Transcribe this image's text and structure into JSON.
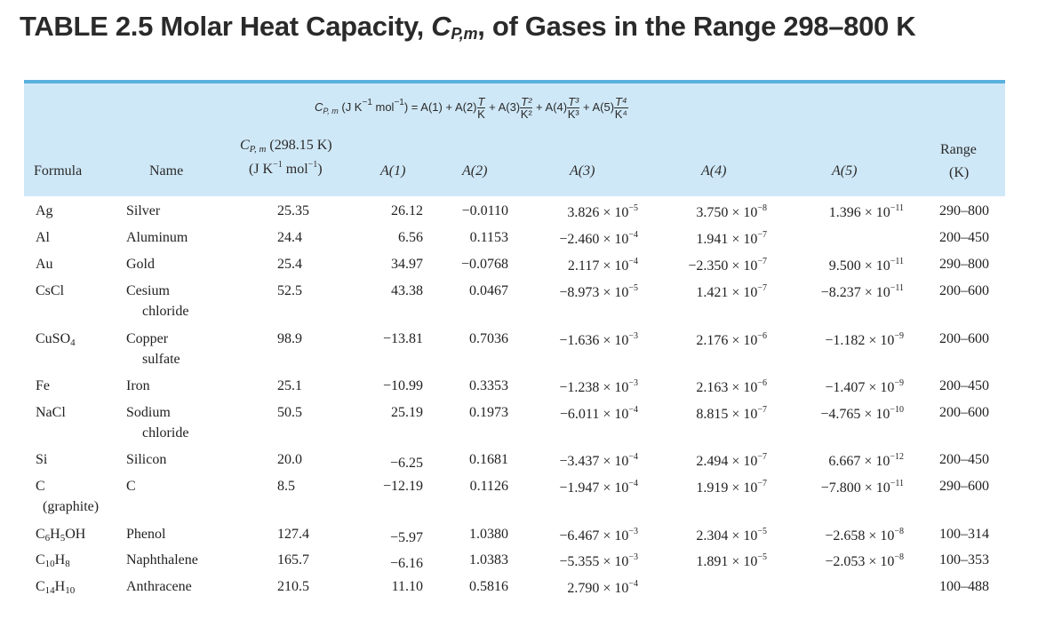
{
  "title": {
    "prefix": "TABLE 2.5 Molar Heat Capacity, ",
    "symbol": "C",
    "subscript": "P,m",
    "suffix": ", of Gases in the Range 298–800 K"
  },
  "equation": {
    "lhs": "C",
    "lhs_sub": "P, m",
    "lhs_units": "(J K",
    "lhs_units_sup": "−1",
    "lhs_units_mid": " mol",
    "lhs_units_sup2": "−1",
    "lhs_units_end": ") = A(1) + A(2)",
    "t_num": "T",
    "t_den": "K",
    "a3": "+ A(3)",
    "t2_num": "T²",
    "t2_den": "K²",
    "a4": "+ A(4)",
    "t3_num": "T³",
    "t3_den": "K³",
    "a5": "+ A(5)",
    "t4_num": "T⁴",
    "t4_den": "K⁴"
  },
  "headers": {
    "formula": "Formula",
    "name": "Name",
    "cp_line1_sym": "C",
    "cp_line1_sub": "P, m",
    "cp_line1_rest": " (298.15 K)",
    "cp_line2": "(J K",
    "cp_line2_sup": "−1",
    "cp_line2_mid": " mol",
    "cp_line2_sup2": "−1",
    "cp_line2_end": ")",
    "a1": "A(1)",
    "a2": "A(2)",
    "a3": "A(3)",
    "a4": "A(4)",
    "a5": "A(5)",
    "range_line1": "Range",
    "range_line2": "(K)"
  },
  "rows": [
    {
      "formula": "Ag",
      "name": "Silver",
      "name2": "",
      "cp": "25.35",
      "a1": "26.12",
      "a2": "−0.0110",
      "a3": "3.826 × 10",
      "a3e": "−5",
      "a4": "3.750 × 10",
      "a4e": "−8",
      "a5": "1.396 × 10",
      "a5e": "−11",
      "range": "290–800"
    },
    {
      "formula": "Al",
      "name": "Aluminum",
      "name2": "",
      "cp": "24.4",
      "a1": "6.56",
      "a2": "0.1153",
      "a3": "−2.460 × 10",
      "a3e": "−4",
      "a4": "1.941 × 10",
      "a4e": "−7",
      "a5": "",
      "a5e": "",
      "range": "200–450"
    },
    {
      "formula": "Au",
      "name": "Gold",
      "name2": "",
      "cp": "25.4",
      "a1": "34.97",
      "a2": "−0.0768",
      "a3": "2.117 × 10",
      "a3e": "−4",
      "a4": "−2.350 × 10",
      "a4e": "−7",
      "a5": "9.500 × 10",
      "a5e": "−11",
      "range": "290–800"
    },
    {
      "formula": "CsCl",
      "name": "Cesium",
      "name2": "chloride",
      "cp": "52.5",
      "a1": "43.38",
      "a2": "0.0467",
      "a3": "−8.973 × 10",
      "a3e": "−5",
      "a4": "1.421 × 10",
      "a4e": "−7",
      "a5": "−8.237 × 10",
      "a5e": "−11",
      "range": "200–600"
    },
    {
      "formula": "CuSO",
      "formula_sub": "4",
      "name": "Copper",
      "name2": "sulfate",
      "cp": "98.9",
      "a1": "−13.81",
      "a2": "0.7036",
      "a3": "−1.636 × 10",
      "a3e": "−3",
      "a4": "2.176 × 10",
      "a4e": "−6",
      "a5": "−1.182 × 10",
      "a5e": "−9",
      "range": "200–600"
    },
    {
      "formula": "Fe",
      "name": "Iron",
      "name2": "",
      "cp": "25.1",
      "a1": "−10.99",
      "a2": "0.3353",
      "a3": "−1.238 × 10",
      "a3e": "−3",
      "a4": "2.163 × 10",
      "a4e": "−6",
      "a5": "−1.407 × 10",
      "a5e": "−9",
      "range": "200–450"
    },
    {
      "formula": "NaCl",
      "name": "Sodium",
      "name2": "chloride",
      "cp": "50.5",
      "a1": "25.19",
      "a2": "0.1973",
      "a3": "−6.011 × 10",
      "a3e": "−4",
      "a4": "8.815 × 10",
      "a4e": "−7",
      "a5": "−4.765 × 10",
      "a5e": "−10",
      "range": "200–600"
    },
    {
      "formula": "Si",
      "name": "Silicon",
      "name2": "",
      "cp": "20.0",
      "a1": "−6.25",
      "a2": "0.1681",
      "a3": "−3.437 × 10",
      "a3e": "−4",
      "a4": "2.494 × 10",
      "a4e": "−7",
      "a5": "6.667 × 10",
      "a5e": "−12",
      "range": "200–450"
    },
    {
      "formula": "C",
      "formula2": "(graphite)",
      "name": "C",
      "name2": "",
      "cp": "8.5",
      "a1": "−12.19",
      "a2": "0.1126",
      "a3": "−1.947 × 10",
      "a3e": "−4",
      "a4": "1.919 × 10",
      "a4e": "−7",
      "a5": "−7.800 × 10",
      "a5e": "−11",
      "range": "290–600"
    },
    {
      "formula": "C6H5OH",
      "name": "Phenol",
      "name2": "",
      "cp": "127.4",
      "a1": "−5.97",
      "a2": "1.0380",
      "a3": "−6.467 × 10",
      "a3e": "−3",
      "a4": "2.304 × 10",
      "a4e": "−5",
      "a5": "−2.658 × 10",
      "a5e": "−8",
      "range": "100–314"
    },
    {
      "formula": "C10H8",
      "name": "Naphthalene",
      "name2": "",
      "cp": "165.7",
      "a1": "−6.16",
      "a2": "1.0383",
      "a3": "−5.355 × 10",
      "a3e": "−3",
      "a4": "1.891 × 10",
      "a4e": "−5",
      "a5": "−2.053 × 10",
      "a5e": "−8",
      "range": "100–353"
    },
    {
      "formula": "C14H10",
      "name": "Anthracene",
      "name2": "",
      "cp": "210.5",
      "a1": "11.10",
      "a2": "0.5816",
      "a3": "2.790 × 10",
      "a3e": "−4",
      "a4": "",
      "a4e": "",
      "a5": "",
      "a5e": "",
      "range": "100–488"
    }
  ]
}
